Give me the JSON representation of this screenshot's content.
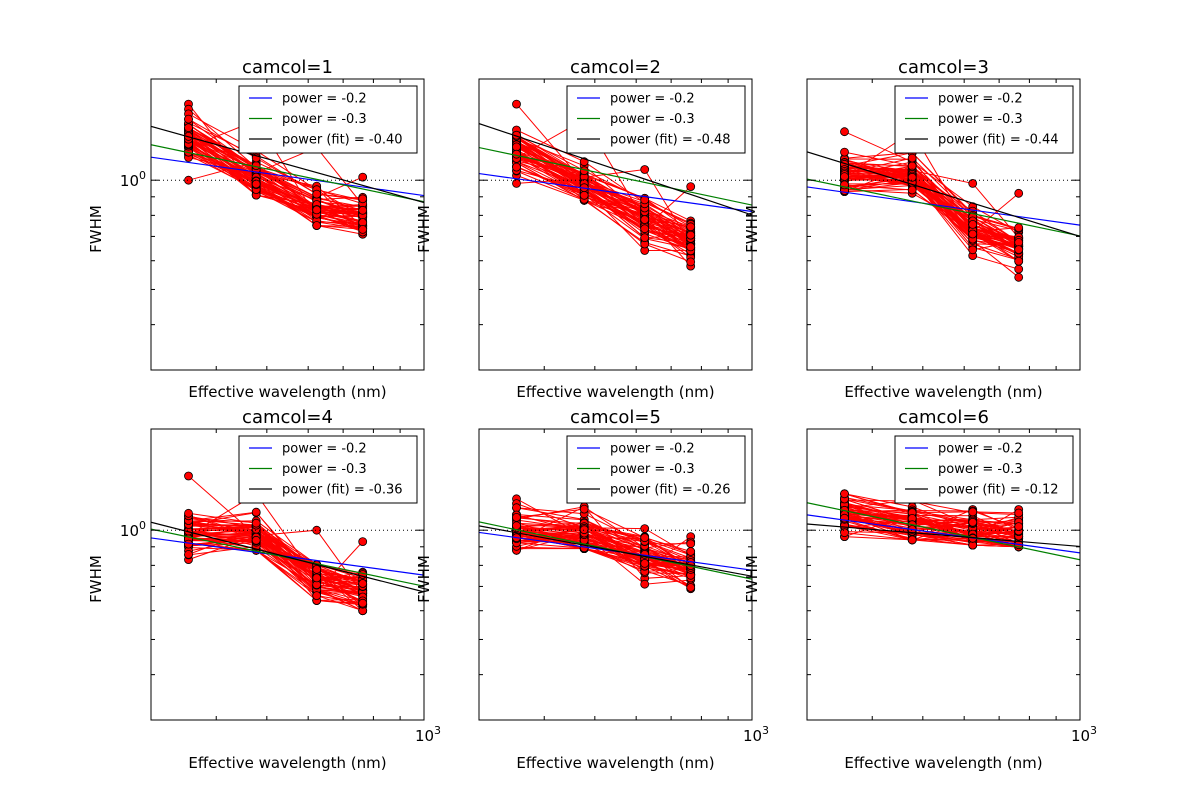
{
  "figure": {
    "background": "#ffffff",
    "colors": {
      "data_lines": "#ff0000",
      "markers_fill": "#ff0000",
      "markers_edge": "#000000",
      "power_02": "#0000ff",
      "power_03": "#008000",
      "power_fit": "#000000",
      "reference_line": "#000000"
    }
  },
  "chart_data": [
    {
      "type": "line",
      "title": "camcol=1",
      "xlabel": "Effective wavelength (nm)",
      "ylabel": "FWHM",
      "x_scale": "log",
      "y_scale": "log",
      "xlim": [
        300,
        1000
      ],
      "ylim": [
        0.3,
        1.9
      ],
      "y_tick_labels": [
        "10^0"
      ],
      "x_tick_labels": [],
      "grid": false,
      "legend": "top-right",
      "reference_line_y": 1.0,
      "wavelengths": [
        354,
        477,
        623,
        763
      ],
      "series": [
        {
          "name": "power = -0.2",
          "x": [
            300,
            1000
          ],
          "y": [
            1.157,
            0.907
          ]
        },
        {
          "name": "power = -0.3",
          "x": [
            300,
            1000
          ],
          "y": [
            1.252,
            0.872
          ]
        },
        {
          "name": "power (fit) = -0.40",
          "x": [
            300,
            1000
          ],
          "y": [
            1.407,
            0.868
          ]
        }
      ],
      "measurements_summary": {
        "n_tracks": 60,
        "medians": [
          1.3,
          1.02,
          0.83,
          0.78
        ],
        "ranges": [
          [
            1.0,
            1.62
          ],
          [
            0.91,
            1.46
          ],
          [
            0.75,
            1.23
          ],
          [
            0.71,
            1.02
          ]
        ]
      }
    },
    {
      "type": "line",
      "title": "camcol=2",
      "xlabel": "Effective wavelength (nm)",
      "ylabel": "FWHM",
      "x_scale": "log",
      "y_scale": "log",
      "xlim": [
        300,
        1000
      ],
      "ylim": [
        0.3,
        1.9
      ],
      "y_tick_labels": [],
      "x_tick_labels": [],
      "grid": false,
      "legend": "top-right",
      "reference_line_y": 1.0,
      "wavelengths": [
        354,
        477,
        623,
        763
      ],
      "series": [
        {
          "name": "power = -0.2",
          "x": [
            300,
            1000
          ],
          "y": [
            1.043,
            0.82
          ]
        },
        {
          "name": "power = -0.3",
          "x": [
            300,
            1000
          ],
          "y": [
            1.23,
            0.854
          ]
        },
        {
          "name": "power (fit) = -0.48",
          "x": [
            300,
            1000
          ],
          "y": [
            1.432,
            0.802
          ]
        }
      ],
      "measurements_summary": {
        "n_tracks": 60,
        "medians": [
          1.2,
          0.97,
          0.78,
          0.68
        ],
        "ranges": [
          [
            0.98,
            1.62
          ],
          [
            0.88,
            1.47
          ],
          [
            0.64,
            1.07
          ],
          [
            0.58,
            0.96
          ]
        ]
      }
    },
    {
      "type": "line",
      "title": "camcol=3",
      "xlabel": "Effective wavelength (nm)",
      "ylabel": "FWHM",
      "x_scale": "log",
      "y_scale": "log",
      "xlim": [
        300,
        1000
      ],
      "ylim": [
        0.3,
        1.9
      ],
      "y_tick_labels": [],
      "x_tick_labels": [],
      "grid": false,
      "legend": "top-right",
      "reference_line_y": 1.0,
      "wavelengths": [
        354,
        477,
        623,
        763
      ],
      "series": [
        {
          "name": "power = -0.2",
          "x": [
            300,
            1000
          ],
          "y": [
            0.958,
            0.752
          ]
        },
        {
          "name": "power = -0.3",
          "x": [
            300,
            1000
          ],
          "y": [
            1.007,
            0.702
          ]
        },
        {
          "name": "power (fit) = -0.44",
          "x": [
            300,
            1000
          ],
          "y": [
            1.197,
            0.7
          ]
        }
      ],
      "measurements_summary": {
        "n_tracks": 60,
        "medians": [
          1.05,
          1.04,
          0.73,
          0.66
        ],
        "ranges": [
          [
            0.93,
            1.36
          ],
          [
            0.92,
            1.36
          ],
          [
            0.62,
            0.98
          ],
          [
            0.54,
            0.92
          ]
        ]
      }
    },
    {
      "type": "line",
      "title": "camcol=4",
      "xlabel": "Effective wavelength (nm)",
      "ylabel": "FWHM",
      "x_scale": "log",
      "y_scale": "log",
      "xlim": [
        300,
        1000
      ],
      "ylim": [
        0.3,
        1.9
      ],
      "y_tick_labels": [
        "10^0"
      ],
      "x_tick_labels": [
        "10^3"
      ],
      "grid": false,
      "legend": "top-right",
      "reference_line_y": 1.0,
      "wavelengths": [
        354,
        477,
        623,
        763
      ],
      "series": [
        {
          "name": "power = -0.2",
          "x": [
            300,
            1000
          ],
          "y": [
            0.952,
            0.752
          ]
        },
        {
          "name": "power = -0.3",
          "x": [
            300,
            1000
          ],
          "y": [
            1.007,
            0.701
          ]
        },
        {
          "name": "power (fit) = -0.36",
          "x": [
            300,
            1000
          ],
          "y": [
            1.052,
            0.676
          ]
        }
      ],
      "measurements_summary": {
        "n_tracks": 60,
        "medians": [
          0.98,
          0.98,
          0.73,
          0.67
        ],
        "ranges": [
          [
            0.83,
            1.41
          ],
          [
            0.88,
            1.26
          ],
          [
            0.64,
            1.0
          ],
          [
            0.6,
            0.93
          ]
        ]
      }
    },
    {
      "type": "line",
      "title": "camcol=5",
      "xlabel": "Effective wavelength (nm)",
      "ylabel": "FWHM",
      "x_scale": "log",
      "y_scale": "log",
      "xlim": [
        300,
        1000
      ],
      "ylim": [
        0.3,
        1.9
      ],
      "y_tick_labels": [],
      "x_tick_labels": [
        "10^3"
      ],
      "grid": false,
      "legend": "top-right",
      "reference_line_y": 1.0,
      "wavelengths": [
        354,
        477,
        623,
        763
      ],
      "series": [
        {
          "name": "power = -0.2",
          "x": [
            300,
            1000
          ],
          "y": [
            0.986,
            0.776
          ]
        },
        {
          "name": "power = -0.3",
          "x": [
            300,
            1000
          ],
          "y": [
            1.054,
            0.733
          ]
        },
        {
          "name": "power (fit) = -0.26",
          "x": [
            300,
            1000
          ],
          "y": [
            1.028,
            0.747
          ]
        }
      ],
      "measurements_summary": {
        "n_tracks": 60,
        "medians": [
          1.0,
          0.98,
          0.85,
          0.78
        ],
        "ranges": [
          [
            0.88,
            1.22
          ],
          [
            0.89,
            1.16
          ],
          [
            0.71,
            1.01
          ],
          [
            0.69,
            0.96
          ]
        ]
      }
    },
    {
      "type": "line",
      "title": "camcol=6",
      "xlabel": "Effective wavelength (nm)",
      "ylabel": "FWHM",
      "x_scale": "log",
      "y_scale": "log",
      "xlim": [
        300,
        1000
      ],
      "ylim": [
        0.3,
        1.9
      ],
      "y_tick_labels": [],
      "x_tick_labels": [
        "10^3"
      ],
      "grid": false,
      "legend": "top-right",
      "reference_line_y": 1.0,
      "wavelengths": [
        354,
        477,
        623,
        763
      ],
      "series": [
        {
          "name": "power = -0.2",
          "x": [
            300,
            1000
          ],
          "y": [
            1.102,
            0.866
          ]
        },
        {
          "name": "power = -0.3",
          "x": [
            300,
            1000
          ],
          "y": [
            1.19,
            0.829
          ]
        },
        {
          "name": "power (fit) = -0.12",
          "x": [
            300,
            1000
          ],
          "y": [
            1.04,
            0.902
          ]
        }
      ],
      "measurements_summary": {
        "n_tracks": 60,
        "medians": [
          1.12,
          1.04,
          1.0,
          0.98
        ],
        "ranges": [
          [
            0.96,
            1.26
          ],
          [
            0.94,
            1.21
          ],
          [
            0.91,
            1.14
          ],
          [
            0.9,
            1.14
          ]
        ]
      }
    }
  ]
}
